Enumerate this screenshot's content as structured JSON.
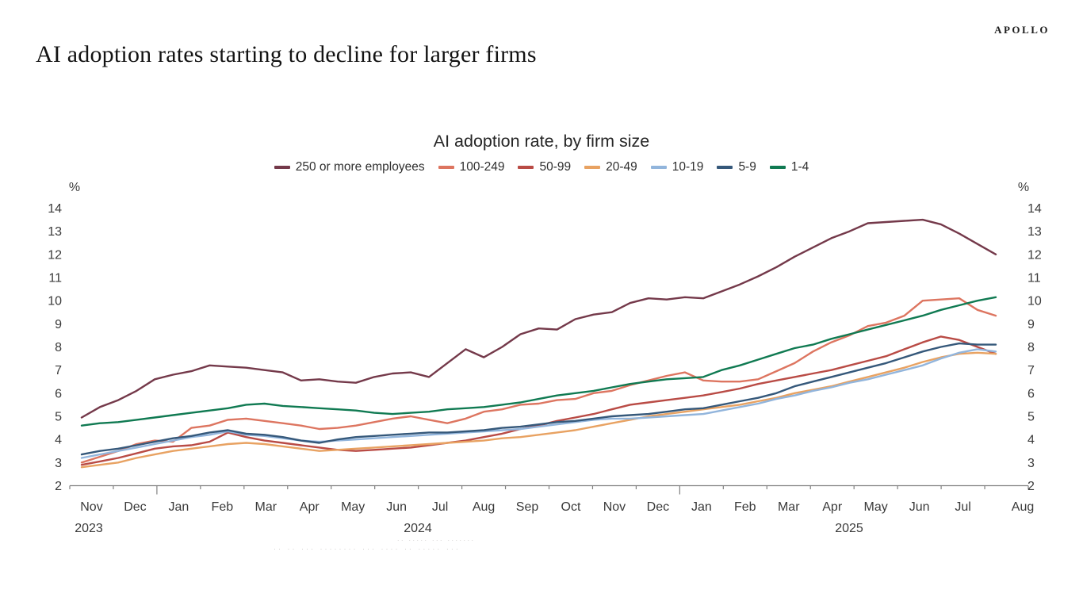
{
  "page": {
    "brand": "APOLLO",
    "heading": "AI adoption rates starting to decline for larger firms",
    "faded_note_1": "·· ····· ··· ·······",
    "faded_note_2": "·· ·· ··· ········ ··· ···· ·· ····· ···"
  },
  "chart_data": {
    "type": "line",
    "title": "AI adoption rate, by firm size",
    "y_unit_label": "%",
    "ylim": [
      2,
      14
    ],
    "y_ticks": [
      14,
      13,
      12,
      11,
      10,
      9,
      8,
      7,
      6,
      5,
      4,
      3,
      2
    ],
    "grid": false,
    "legend_position": "top",
    "frequency": "biweekly, Nov 2023 through late Jul 2025",
    "x_months": [
      "Nov",
      "Dec",
      "Jan",
      "Feb",
      "Mar",
      "Apr",
      "May",
      "Jun",
      "Jul",
      "Aug",
      "Sep",
      "Oct",
      "Nov",
      "Dec",
      "Jan",
      "Feb",
      "Mar",
      "Apr",
      "May",
      "Jun",
      "Jul",
      "Aug"
    ],
    "x_years": [
      {
        "label": "2023",
        "starts_at_month_index": 0
      },
      {
        "label": "2024",
        "starts_at_month_index": 2
      },
      {
        "label": "2025",
        "starts_at_month_index": 14
      }
    ],
    "axis_color": "#808080",
    "label_color": "#3a3a3a",
    "series": [
      {
        "name": "250 or more employees",
        "color": "#74394a",
        "values": [
          4.95,
          5.4,
          5.7,
          6.1,
          6.6,
          6.8,
          6.95,
          7.2,
          7.15,
          7.1,
          7.0,
          6.9,
          6.55,
          6.6,
          6.5,
          6.45,
          6.7,
          6.85,
          6.9,
          6.7,
          7.3,
          7.9,
          7.55,
          8.0,
          8.55,
          8.8,
          8.75,
          9.2,
          9.4,
          9.5,
          9.9,
          10.1,
          10.05,
          10.15,
          10.1,
          10.4,
          10.7,
          11.05,
          11.45,
          11.9,
          12.3,
          12.7,
          13.0,
          13.35,
          13.4,
          13.45,
          13.5,
          13.3,
          12.9,
          12.45,
          12.0
        ]
      },
      {
        "name": "100-249",
        "color": "#dd7560",
        "values": [
          3.0,
          3.25,
          3.5,
          3.8,
          3.95,
          3.9,
          4.5,
          4.6,
          4.85,
          4.9,
          4.8,
          4.7,
          4.6,
          4.45,
          4.5,
          4.6,
          4.75,
          4.9,
          5.0,
          4.85,
          4.7,
          4.9,
          5.2,
          5.3,
          5.5,
          5.55,
          5.7,
          5.75,
          6.0,
          6.1,
          6.35,
          6.55,
          6.75,
          6.9,
          6.55,
          6.5,
          6.5,
          6.6,
          6.95,
          7.3,
          7.8,
          8.2,
          8.5,
          8.9,
          9.05,
          9.35,
          10.0,
          10.05,
          10.1,
          9.6,
          9.35
        ]
      },
      {
        "name": "50-99",
        "color": "#b94b45",
        "values": [
          2.9,
          3.05,
          3.2,
          3.4,
          3.6,
          3.7,
          3.75,
          3.9,
          4.3,
          4.1,
          3.95,
          3.85,
          3.75,
          3.65,
          3.55,
          3.5,
          3.55,
          3.6,
          3.65,
          3.75,
          3.85,
          3.95,
          4.1,
          4.25,
          4.45,
          4.6,
          4.8,
          4.95,
          5.1,
          5.3,
          5.5,
          5.6,
          5.7,
          5.8,
          5.9,
          6.05,
          6.2,
          6.4,
          6.55,
          6.7,
          6.85,
          7.0,
          7.2,
          7.4,
          7.6,
          7.9,
          8.2,
          8.45,
          8.3,
          8.0,
          7.7
        ]
      },
      {
        "name": "20-49",
        "color": "#e8a262",
        "values": [
          2.8,
          2.9,
          3.0,
          3.2,
          3.35,
          3.5,
          3.6,
          3.7,
          3.8,
          3.85,
          3.8,
          3.7,
          3.6,
          3.5,
          3.55,
          3.6,
          3.65,
          3.7,
          3.75,
          3.8,
          3.85,
          3.9,
          3.95,
          4.05,
          4.1,
          4.2,
          4.3,
          4.4,
          4.55,
          4.7,
          4.85,
          5.0,
          5.1,
          5.2,
          5.3,
          5.4,
          5.5,
          5.65,
          5.8,
          6.0,
          6.15,
          6.3,
          6.5,
          6.7,
          6.9,
          7.1,
          7.35,
          7.55,
          7.7,
          7.75,
          7.7
        ]
      },
      {
        "name": "10-19",
        "color": "#92b5dc",
        "values": [
          3.2,
          3.35,
          3.5,
          3.65,
          3.8,
          3.95,
          4.1,
          4.2,
          4.35,
          4.2,
          4.15,
          4.05,
          3.95,
          3.9,
          3.95,
          4.0,
          4.05,
          4.1,
          4.15,
          4.2,
          4.25,
          4.3,
          4.35,
          4.4,
          4.45,
          4.55,
          4.65,
          4.75,
          4.85,
          4.9,
          4.9,
          4.95,
          5.0,
          5.05,
          5.1,
          5.25,
          5.4,
          5.55,
          5.75,
          5.9,
          6.1,
          6.25,
          6.45,
          6.6,
          6.8,
          7.0,
          7.2,
          7.5,
          7.75,
          7.9,
          7.8
        ]
      },
      {
        "name": "5-9",
        "color": "#35587a",
        "values": [
          3.35,
          3.5,
          3.6,
          3.75,
          3.9,
          4.05,
          4.15,
          4.3,
          4.4,
          4.25,
          4.2,
          4.1,
          3.95,
          3.85,
          4.0,
          4.1,
          4.15,
          4.2,
          4.25,
          4.3,
          4.3,
          4.35,
          4.4,
          4.5,
          4.55,
          4.65,
          4.75,
          4.8,
          4.9,
          5.0,
          5.05,
          5.1,
          5.2,
          5.3,
          5.35,
          5.5,
          5.65,
          5.8,
          6.0,
          6.3,
          6.5,
          6.7,
          6.9,
          7.1,
          7.3,
          7.55,
          7.8,
          8.0,
          8.15,
          8.1,
          8.1
        ]
      },
      {
        "name": "1-4",
        "color": "#107a52",
        "values": [
          4.6,
          4.7,
          4.75,
          4.85,
          4.95,
          5.05,
          5.15,
          5.25,
          5.35,
          5.5,
          5.55,
          5.45,
          5.4,
          5.35,
          5.3,
          5.25,
          5.15,
          5.1,
          5.15,
          5.2,
          5.3,
          5.35,
          5.4,
          5.5,
          5.6,
          5.75,
          5.9,
          6.0,
          6.1,
          6.25,
          6.4,
          6.5,
          6.6,
          6.65,
          6.7,
          7.0,
          7.2,
          7.45,
          7.7,
          7.95,
          8.1,
          8.35,
          8.55,
          8.75,
          8.95,
          9.15,
          9.35,
          9.6,
          9.8,
          10.0,
          10.15
        ]
      }
    ]
  }
}
